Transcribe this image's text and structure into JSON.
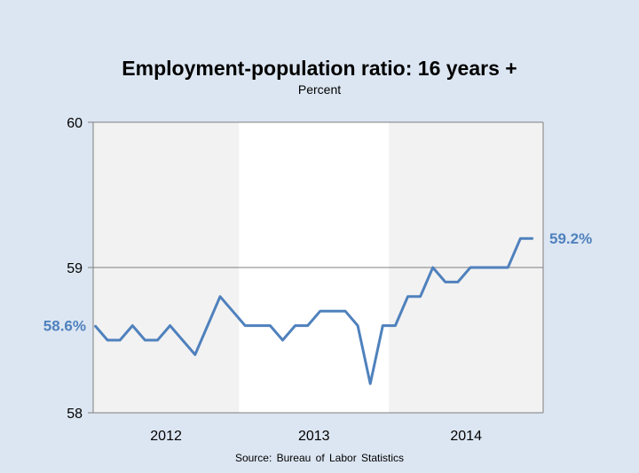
{
  "chart_data": {
    "type": "line",
    "title": "Employment-population ratio: 16 years +",
    "subtitle": "Percent",
    "source": "Source: Bureau of Labor Statistics",
    "xlabel": "",
    "ylabel": "",
    "ylim": [
      58,
      60
    ],
    "y_ticks": [
      "58",
      "59",
      "60"
    ],
    "year_labels": [
      "2012",
      "2013",
      "2014"
    ],
    "grid": "single horizontal gridline at 59",
    "shading": "alternating gray bands for 2012 and 2014",
    "series": [
      {
        "color": "#4f81bd",
        "x": [
          "2012-01",
          "2012-02",
          "2012-03",
          "2012-04",
          "2012-05",
          "2012-06",
          "2012-07",
          "2012-08",
          "2012-09",
          "2012-10",
          "2012-11",
          "2012-12",
          "2013-01",
          "2013-02",
          "2013-03",
          "2013-04",
          "2013-05",
          "2013-06",
          "2013-07",
          "2013-08",
          "2013-09",
          "2013-10",
          "2013-11",
          "2013-12",
          "2014-01",
          "2014-02",
          "2014-03",
          "2014-04",
          "2014-05",
          "2014-06",
          "2014-07",
          "2014-08",
          "2014-09",
          "2014-10",
          "2014-11",
          "2014-12"
        ],
        "values": [
          58.6,
          58.5,
          58.5,
          58.6,
          58.5,
          58.5,
          58.6,
          58.5,
          58.4,
          58.6,
          58.8,
          58.7,
          58.6,
          58.6,
          58.6,
          58.5,
          58.6,
          58.6,
          58.7,
          58.7,
          58.7,
          58.6,
          58.2,
          58.6,
          58.6,
          58.8,
          58.8,
          59.0,
          58.9,
          58.9,
          59.0,
          59.0,
          59.0,
          59.0,
          59.2,
          59.2
        ]
      }
    ],
    "annotations": {
      "start": "58.6%",
      "end": "59.2%"
    }
  }
}
